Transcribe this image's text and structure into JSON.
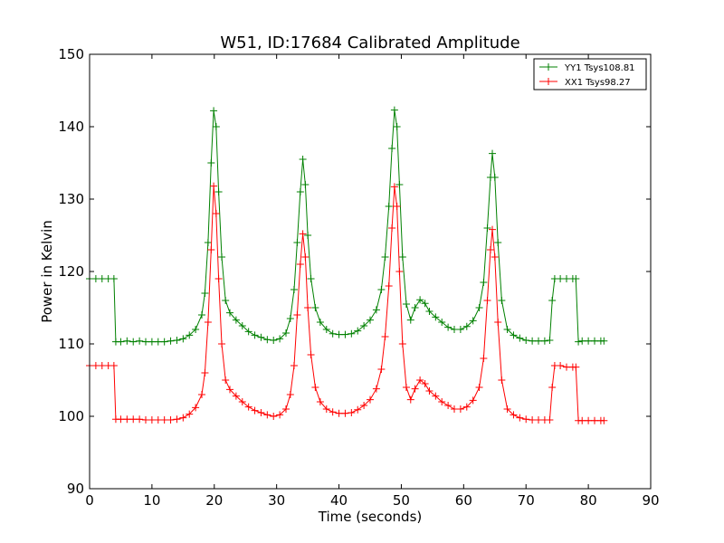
{
  "chart_data": {
    "type": "line",
    "title": "W51, ID:17684 Calibrated Amplitude",
    "xlabel": "Time (seconds)",
    "ylabel": "Power in Kelvin",
    "xlim": [
      0,
      90
    ],
    "ylim": [
      90,
      150
    ],
    "xticks": [
      0,
      10,
      20,
      30,
      40,
      50,
      60,
      70,
      80,
      90
    ],
    "yticks": [
      90,
      100,
      110,
      120,
      130,
      140,
      150
    ],
    "grid": false,
    "legend_position": "top-right",
    "marker": "plus",
    "series": [
      {
        "name": "YY1 Tsys108.81",
        "color": "#008000",
        "points": [
          [
            0,
            119
          ],
          [
            1,
            119
          ],
          [
            2,
            119
          ],
          [
            3,
            119
          ],
          [
            3.9,
            119
          ],
          [
            4.2,
            110.3
          ],
          [
            5,
            110.3
          ],
          [
            6,
            110.4
          ],
          [
            7,
            110.3
          ],
          [
            8,
            110.4
          ],
          [
            9,
            110.3
          ],
          [
            10,
            110.3
          ],
          [
            11,
            110.3
          ],
          [
            12,
            110.3
          ],
          [
            13,
            110.4
          ],
          [
            14,
            110.5
          ],
          [
            15,
            110.7
          ],
          [
            16,
            111.2
          ],
          [
            17,
            112
          ],
          [
            18,
            114
          ],
          [
            18.5,
            117
          ],
          [
            19,
            124
          ],
          [
            19.5,
            135
          ],
          [
            19.9,
            142.2
          ],
          [
            20.3,
            140
          ],
          [
            20.7,
            131
          ],
          [
            21.2,
            122
          ],
          [
            21.8,
            116
          ],
          [
            22.5,
            114.3
          ],
          [
            23.5,
            113.3
          ],
          [
            24.5,
            112.5
          ],
          [
            25.5,
            111.7
          ],
          [
            26.5,
            111.2
          ],
          [
            27.5,
            110.9
          ],
          [
            28.5,
            110.6
          ],
          [
            29.5,
            110.5
          ],
          [
            30.5,
            110.7
          ],
          [
            31.5,
            111.5
          ],
          [
            32.2,
            113.5
          ],
          [
            32.8,
            117.5
          ],
          [
            33.3,
            124
          ],
          [
            33.8,
            131
          ],
          [
            34.2,
            135.5
          ],
          [
            34.6,
            132
          ],
          [
            35,
            125
          ],
          [
            35.5,
            119
          ],
          [
            36.2,
            115
          ],
          [
            37,
            113
          ],
          [
            38,
            112
          ],
          [
            39,
            111.4
          ],
          [
            40,
            111.3
          ],
          [
            41,
            111.3
          ],
          [
            42,
            111.4
          ],
          [
            43,
            111.8
          ],
          [
            44,
            112.5
          ],
          [
            45,
            113.3
          ],
          [
            46,
            114.7
          ],
          [
            46.8,
            117.5
          ],
          [
            47.4,
            122
          ],
          [
            48,
            129
          ],
          [
            48.5,
            137
          ],
          [
            48.9,
            142.3
          ],
          [
            49.3,
            140
          ],
          [
            49.7,
            132
          ],
          [
            50.2,
            122
          ],
          [
            50.8,
            115.5
          ],
          [
            51.5,
            113.3
          ],
          [
            52.2,
            115
          ],
          [
            53,
            116.1
          ],
          [
            53.8,
            115.6
          ],
          [
            54.5,
            114.5
          ],
          [
            55.5,
            113.7
          ],
          [
            56.5,
            113
          ],
          [
            57.5,
            112.3
          ],
          [
            58.5,
            112
          ],
          [
            59.5,
            112
          ],
          [
            60.5,
            112.4
          ],
          [
            61.5,
            113.2
          ],
          [
            62.5,
            115
          ],
          [
            63.2,
            118.5
          ],
          [
            63.8,
            126
          ],
          [
            64.3,
            133
          ],
          [
            64.6,
            136.3
          ],
          [
            65,
            133
          ],
          [
            65.5,
            124
          ],
          [
            66.1,
            116
          ],
          [
            67,
            112
          ],
          [
            68,
            111.2
          ],
          [
            69,
            110.8
          ],
          [
            70,
            110.5
          ],
          [
            71,
            110.4
          ],
          [
            72,
            110.4
          ],
          [
            73,
            110.4
          ],
          [
            73.8,
            110.5
          ],
          [
            74.2,
            116
          ],
          [
            74.6,
            119
          ],
          [
            75.5,
            119
          ],
          [
            76.5,
            119
          ],
          [
            77.5,
            119
          ],
          [
            78,
            119
          ],
          [
            78.4,
            110.3
          ],
          [
            79,
            110.4
          ],
          [
            80,
            110.4
          ],
          [
            81,
            110.4
          ],
          [
            82,
            110.4
          ],
          [
            82.5,
            110.4
          ]
        ]
      },
      {
        "name": "XX1 Tsys98.27",
        "color": "#ff0000",
        "points": [
          [
            0,
            107
          ],
          [
            1,
            107
          ],
          [
            2,
            107
          ],
          [
            3,
            107
          ],
          [
            3.9,
            107
          ],
          [
            4.2,
            99.6
          ],
          [
            5,
            99.6
          ],
          [
            6,
            99.6
          ],
          [
            7,
            99.6
          ],
          [
            8,
            99.6
          ],
          [
            9,
            99.5
          ],
          [
            10,
            99.5
          ],
          [
            11,
            99.5
          ],
          [
            12,
            99.5
          ],
          [
            13,
            99.5
          ],
          [
            14,
            99.6
          ],
          [
            15,
            99.8
          ],
          [
            16,
            100.3
          ],
          [
            17,
            101.2
          ],
          [
            18,
            103
          ],
          [
            18.5,
            106
          ],
          [
            19,
            113
          ],
          [
            19.5,
            123
          ],
          [
            19.9,
            131.8
          ],
          [
            20.3,
            128
          ],
          [
            20.7,
            119
          ],
          [
            21.2,
            110
          ],
          [
            21.8,
            105
          ],
          [
            22.5,
            103.7
          ],
          [
            23.5,
            102.8
          ],
          [
            24.5,
            102
          ],
          [
            25.5,
            101.3
          ],
          [
            26.5,
            100.8
          ],
          [
            27.5,
            100.5
          ],
          [
            28.5,
            100.2
          ],
          [
            29.5,
            100
          ],
          [
            30.5,
            100.2
          ],
          [
            31.5,
            101
          ],
          [
            32.2,
            103
          ],
          [
            32.8,
            107
          ],
          [
            33.3,
            114
          ],
          [
            33.8,
            121
          ],
          [
            34.2,
            125.2
          ],
          [
            34.6,
            122
          ],
          [
            35,
            115
          ],
          [
            35.5,
            108.5
          ],
          [
            36.2,
            104
          ],
          [
            37,
            102
          ],
          [
            38,
            101
          ],
          [
            39,
            100.6
          ],
          [
            40,
            100.4
          ],
          [
            41,
            100.4
          ],
          [
            42,
            100.5
          ],
          [
            43,
            100.9
          ],
          [
            44,
            101.5
          ],
          [
            45,
            102.3
          ],
          [
            46,
            103.8
          ],
          [
            46.8,
            106.5
          ],
          [
            47.4,
            111
          ],
          [
            48,
            118
          ],
          [
            48.5,
            126
          ],
          [
            48.9,
            131.7
          ],
          [
            49.3,
            129
          ],
          [
            49.7,
            120
          ],
          [
            50.2,
            110
          ],
          [
            50.8,
            104
          ],
          [
            51.5,
            102.3
          ],
          [
            52.2,
            103.8
          ],
          [
            53,
            105
          ],
          [
            53.8,
            104.5
          ],
          [
            54.5,
            103.5
          ],
          [
            55.5,
            102.8
          ],
          [
            56.5,
            102
          ],
          [
            57.5,
            101.5
          ],
          [
            58.5,
            101
          ],
          [
            59.5,
            101
          ],
          [
            60.5,
            101.3
          ],
          [
            61.5,
            102.2
          ],
          [
            62.5,
            104
          ],
          [
            63.2,
            108
          ],
          [
            63.8,
            116
          ],
          [
            64.3,
            123
          ],
          [
            64.6,
            125.8
          ],
          [
            65,
            122
          ],
          [
            65.5,
            113
          ],
          [
            66.1,
            105
          ],
          [
            67,
            101
          ],
          [
            68,
            100.2
          ],
          [
            69,
            99.8
          ],
          [
            70,
            99.6
          ],
          [
            71,
            99.5
          ],
          [
            72,
            99.5
          ],
          [
            73,
            99.5
          ],
          [
            73.8,
            99.5
          ],
          [
            74.2,
            104
          ],
          [
            74.6,
            107
          ],
          [
            75.5,
            107
          ],
          [
            76.5,
            106.8
          ],
          [
            77.5,
            106.8
          ],
          [
            78,
            106.8
          ],
          [
            78.4,
            99.4
          ],
          [
            79,
            99.4
          ],
          [
            80,
            99.4
          ],
          [
            81,
            99.4
          ],
          [
            82,
            99.4
          ],
          [
            82.5,
            99.4
          ]
        ]
      }
    ]
  }
}
